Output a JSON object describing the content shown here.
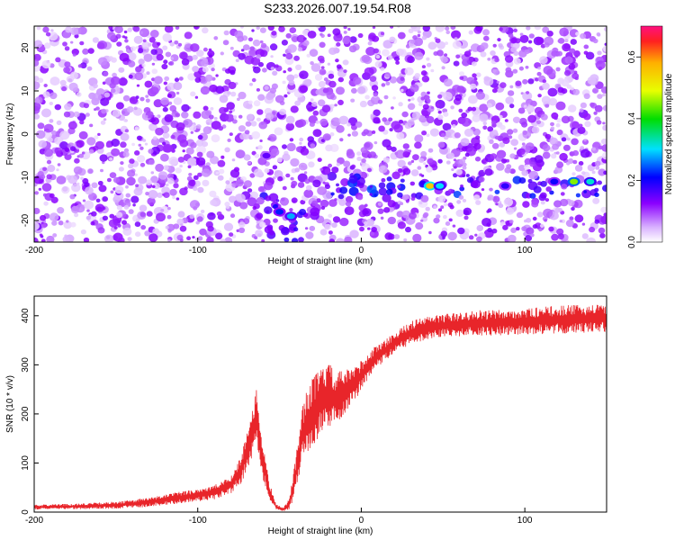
{
  "title": "S233.2026.007.19.54.R08",
  "chart_data": [
    {
      "type": "heatmap",
      "xlabel": "Height of straight line (km)",
      "ylabel": "Frequency (Hz)",
      "xlim": [
        -200,
        150
      ],
      "ylim": [
        -25,
        25
      ],
      "xticks": [
        -200,
        -100,
        0,
        100
      ],
      "yticks": [
        -20,
        -10,
        0,
        10,
        20
      ],
      "colorbar": {
        "label": "Normalized spectral amplitude",
        "range": [
          0,
          0.7
        ],
        "ticks": [
          0.0,
          0.2,
          0.4,
          0.6
        ],
        "tick_labels": [
          "0.0",
          "0.2",
          "0.4",
          "0.6"
        ]
      },
      "features": [
        {
          "x": -50,
          "y": -18,
          "amp": 0.22
        },
        {
          "x": -43,
          "y": -19,
          "amp": 0.28
        },
        {
          "x": -58,
          "y": -5,
          "amp": 0.15
        },
        {
          "x": 42,
          "y": -12,
          "amp": 0.55
        },
        {
          "x": 48,
          "y": -12,
          "amp": 0.3
        },
        {
          "x": 88,
          "y": -12,
          "amp": 0.18
        },
        {
          "x": 130,
          "y": -11,
          "amp": 0.45
        },
        {
          "x": 140,
          "y": -11,
          "amp": 0.32
        },
        {
          "x": 118,
          "y": -11,
          "amp": 0.2
        }
      ]
    },
    {
      "type": "line",
      "xlabel": "Height of straight line (km)",
      "ylabel": "SNR (10 * v/v)",
      "xlim": [
        -200,
        150
      ],
      "ylim": [
        0,
        440
      ],
      "xticks": [
        -200,
        -100,
        0,
        100
      ],
      "yticks": [
        0,
        100,
        200,
        300,
        400
      ],
      "series": [
        {
          "name": "SNR",
          "color": "#e8252a",
          "x": [
            -200,
            -170,
            -150,
            -130,
            -110,
            -90,
            -80,
            -73,
            -68,
            -64,
            -60,
            -56,
            -52,
            -48,
            -44,
            -40,
            -36,
            -32,
            -28,
            -24,
            -20,
            -16,
            -12,
            -8,
            -4,
            0,
            5,
            10,
            15,
            20,
            25,
            30,
            40,
            50,
            60,
            70,
            80,
            100,
            120,
            150
          ],
          "y": [
            10,
            12,
            14,
            20,
            30,
            40,
            55,
            90,
            150,
            190,
            100,
            40,
            10,
            5,
            15,
            80,
            160,
            190,
            210,
            230,
            240,
            230,
            240,
            250,
            260,
            280,
            300,
            320,
            330,
            345,
            355,
            365,
            375,
            380,
            382,
            385,
            385,
            388,
            392,
            395
          ],
          "noise": [
            4,
            5,
            6,
            8,
            10,
            12,
            15,
            25,
            40,
            50,
            30,
            15,
            5,
            3,
            10,
            30,
            50,
            60,
            60,
            55,
            55,
            45,
            40,
            35,
            30,
            25,
            22,
            20,
            18,
            18,
            18,
            20,
            20,
            20,
            20,
            22,
            22,
            22,
            24,
            24
          ]
        }
      ]
    }
  ]
}
